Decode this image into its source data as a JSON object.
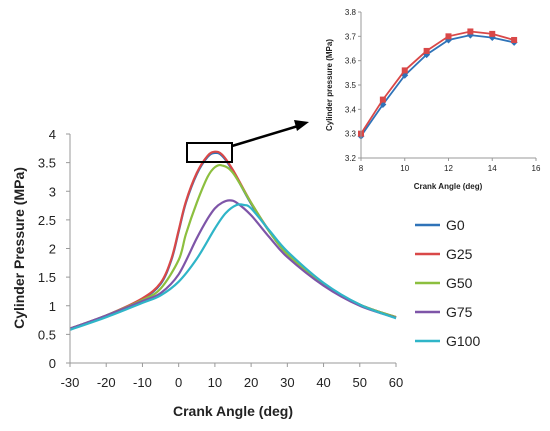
{
  "chart_data": [
    {
      "type": "line",
      "xlabel": "Crank Angle (deg)",
      "ylabel": "Cylinder Pressure (MPa)",
      "xlim": [
        -30,
        60
      ],
      "ylim": [
        0,
        4
      ],
      "x_ticks": [
        "-30",
        "-20",
        "-10",
        "0",
        "10",
        "20",
        "30",
        "40",
        "50",
        "60"
      ],
      "y_ticks": [
        "0",
        "0.5",
        "1",
        "1.5",
        "2",
        "2.5",
        "3",
        "3.5",
        "4"
      ],
      "legend_position": "right",
      "grid": false,
      "series": [
        {
          "name": "G0",
          "color": "#2f73b8",
          "x": [
            -30,
            -20,
            -10,
            -5,
            -2,
            0,
            2,
            5,
            8,
            10,
            12,
            15,
            20,
            25,
            30,
            40,
            50,
            60
          ],
          "y": [
            0.6,
            0.83,
            1.12,
            1.38,
            1.8,
            2.3,
            2.8,
            3.3,
            3.6,
            3.67,
            3.62,
            3.35,
            2.78,
            2.3,
            1.9,
            1.38,
            1.02,
            0.8
          ]
        },
        {
          "name": "G25",
          "color": "#d94848",
          "x": [
            -30,
            -20,
            -10,
            -5,
            -2,
            0,
            2,
            5,
            8,
            10,
            12,
            15,
            20,
            25,
            30,
            40,
            50,
            60
          ],
          "y": [
            0.6,
            0.83,
            1.13,
            1.4,
            1.82,
            2.32,
            2.82,
            3.32,
            3.62,
            3.69,
            3.64,
            3.37,
            2.8,
            2.31,
            1.91,
            1.38,
            1.02,
            0.8
          ]
        },
        {
          "name": "G50",
          "color": "#8cbf3f",
          "x": [
            -30,
            -20,
            -10,
            -5,
            0,
            2,
            5,
            8,
            10,
            12,
            15,
            20,
            25,
            30,
            40,
            50,
            60
          ],
          "y": [
            0.6,
            0.83,
            1.1,
            1.3,
            1.8,
            2.25,
            2.8,
            3.25,
            3.42,
            3.45,
            3.32,
            2.8,
            2.3,
            1.9,
            1.38,
            1.02,
            0.8
          ]
        },
        {
          "name": "G75",
          "color": "#7e55a8",
          "x": [
            -30,
            -20,
            -10,
            -5,
            0,
            5,
            8,
            10,
            12,
            14,
            16,
            20,
            25,
            30,
            40,
            50,
            60
          ],
          "y": [
            0.6,
            0.83,
            1.08,
            1.22,
            1.55,
            2.18,
            2.52,
            2.7,
            2.8,
            2.84,
            2.8,
            2.58,
            2.2,
            1.85,
            1.35,
            1.0,
            0.79
          ]
        },
        {
          "name": "G100",
          "color": "#2fb5c8",
          "x": [
            -30,
            -20,
            -10,
            -5,
            0,
            5,
            10,
            13,
            16,
            18,
            20,
            25,
            30,
            40,
            50,
            60
          ],
          "y": [
            0.58,
            0.8,
            1.05,
            1.18,
            1.42,
            1.82,
            2.35,
            2.62,
            2.76,
            2.76,
            2.7,
            2.32,
            1.95,
            1.4,
            1.02,
            0.78
          ]
        }
      ]
    },
    {
      "type": "line",
      "xlabel": "Crank Angle (deg)",
      "ylabel": "Cylinder pressure (MPa)",
      "xlim": [
        8,
        16
      ],
      "ylim": [
        3.2,
        3.8
      ],
      "x_ticks": [
        "8",
        "10",
        "12",
        "14",
        "16"
      ],
      "y_ticks": [
        "3.2",
        "3.3",
        "3.4",
        "3.5",
        "3.6",
        "3.7",
        "3.8"
      ],
      "series": [
        {
          "name": "G0",
          "color": "#2f73b8",
          "marker": "diamond",
          "x": [
            8,
            9,
            10,
            11,
            12,
            13,
            14,
            15
          ],
          "y": [
            3.29,
            3.42,
            3.54,
            3.625,
            3.685,
            3.705,
            3.695,
            3.675
          ]
        },
        {
          "name": "G25",
          "color": "#d94848",
          "marker": "square",
          "x": [
            8,
            9,
            10,
            11,
            12,
            13,
            14,
            15
          ],
          "y": [
            3.3,
            3.44,
            3.56,
            3.64,
            3.7,
            3.72,
            3.71,
            3.685
          ]
        }
      ]
    }
  ]
}
